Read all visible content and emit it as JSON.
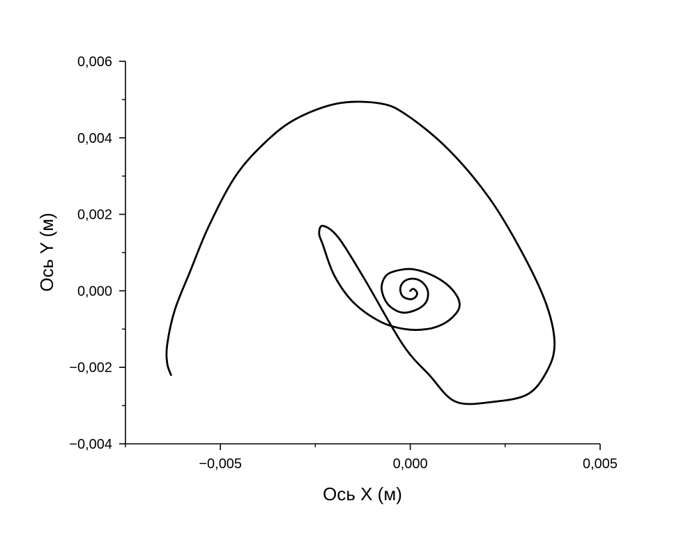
{
  "chart_data": {
    "type": "line",
    "title": "",
    "xlabel": "Ось X (м)",
    "ylabel": "Ось Y (м)",
    "xlim": [
      -0.0075,
      0.005
    ],
    "ylim": [
      -0.004,
      0.006
    ],
    "x_ticks": [
      -0.005,
      0.0,
      0.005
    ],
    "x_tick_labels": [
      "−0,005",
      "0,000",
      "0,005"
    ],
    "x_minor_ticks": [
      -0.0075,
      -0.0025,
      0.0025
    ],
    "y_ticks": [
      -0.004,
      -0.002,
      0.0,
      0.002,
      0.004,
      0.006
    ],
    "y_tick_labels": [
      "−0,004",
      "−0,002",
      "0,000",
      "0,002",
      "0,004",
      "0,006"
    ],
    "y_minor_ticks": [
      -0.003,
      -0.001,
      0.001,
      0.003,
      0.005
    ],
    "grid": false,
    "legend": "none",
    "line_color": "#000000",
    "series": [
      {
        "x": [
          0.0,
          7e-05,
          0.00015,
          0.00018,
          0.00012,
          0.0,
          -0.00018,
          -0.00026,
          -0.00022,
          -6e-05,
          0.00018,
          0.00038,
          0.00047,
          0.0004,
          0.00015,
          -0.0002,
          -0.00052,
          -0.0007,
          -0.00075,
          -0.0006,
          -0.00025,
          0.0001,
          0.00055,
          0.00095,
          0.00122,
          0.0013,
          0.0012,
          0.0009,
          0.00045,
          -0.00015,
          -0.0008,
          -0.0015,
          -0.002,
          -0.0023,
          -0.0024,
          -0.0023,
          -0.0019,
          -0.0012,
          -0.0002,
          0.0005,
          0.0012,
          0.0022,
          0.0031,
          0.0036,
          0.0038,
          0.0036,
          0.003,
          0.0021,
          0.001,
          -0.0001,
          -0.0008,
          -0.0019,
          -0.003,
          -0.0038,
          -0.0046,
          -0.0053,
          -0.0058,
          -0.0062,
          -0.0064,
          -0.0064,
          -0.0063
        ],
        "y": [
          0.0,
          5e-05,
          0.0,
          -8e-05,
          -0.00018,
          -0.00022,
          -0.00016,
          0.0,
          0.00018,
          0.0003,
          0.0003,
          0.00016,
          -6e-05,
          -0.00032,
          -0.0005,
          -0.00057,
          -0.00042,
          -0.00016,
          0.00015,
          0.00043,
          0.00055,
          0.00056,
          0.00042,
          0.00018,
          -0.00012,
          -0.00038,
          -0.0006,
          -0.00085,
          -0.001,
          -0.001,
          -0.0008,
          -0.0003,
          0.0004,
          0.0012,
          0.0015,
          0.0017,
          0.0014,
          0.0003,
          -0.0014,
          -0.0022,
          -0.0029,
          -0.0029,
          -0.0027,
          -0.0021,
          -0.0014,
          -0.0004,
          0.0009,
          0.0024,
          0.0037,
          0.0046,
          0.0049,
          0.0049,
          0.0045,
          0.0039,
          0.003,
          0.0017,
          0.0005,
          -0.0005,
          -0.0014,
          -0.0019,
          -0.0022
        ]
      }
    ]
  }
}
